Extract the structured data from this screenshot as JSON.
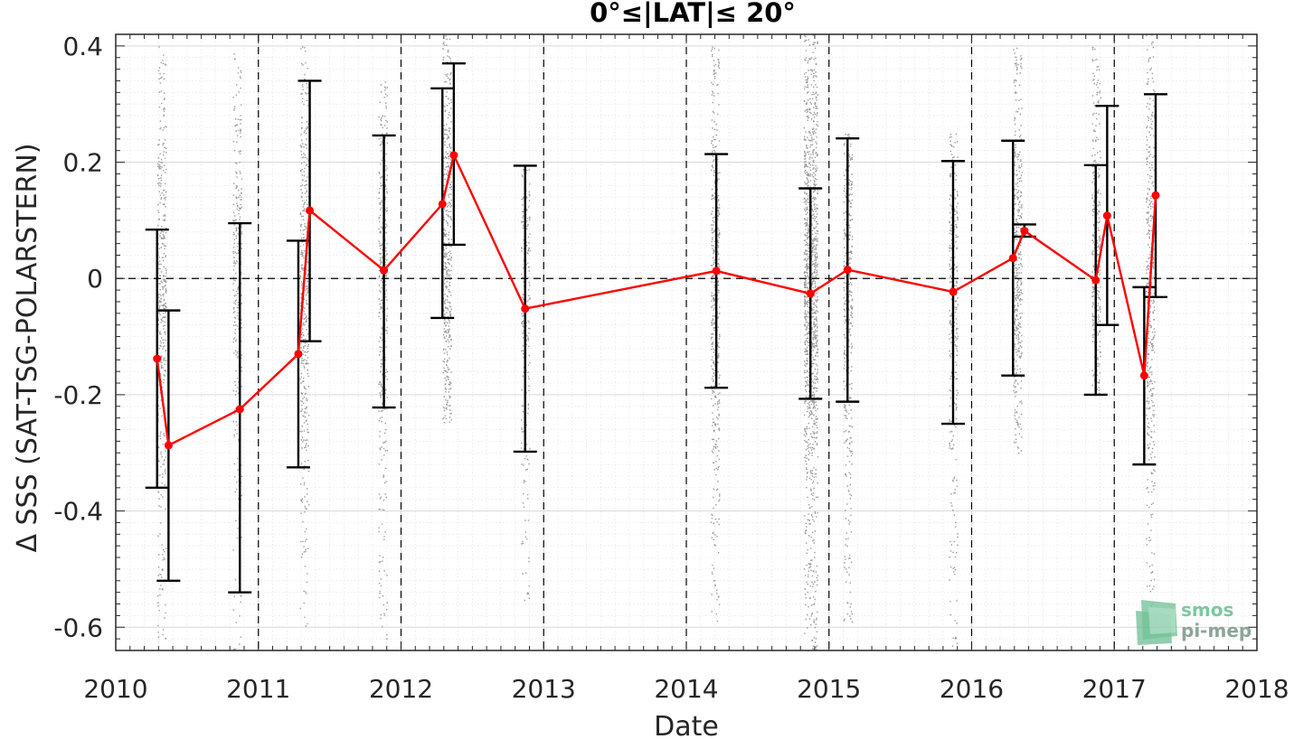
{
  "chart_data": {
    "type": "line",
    "title": "0°≤|LAT|≤ 20°",
    "xlabel": "Date",
    "ylabel": "Δ SSS (SAT-TSG-POLARSTERN)",
    "xlim": [
      2010,
      2018
    ],
    "ylim": [
      -0.64,
      0.42
    ],
    "x_ticks": [
      2010,
      2011,
      2012,
      2013,
      2014,
      2015,
      2016,
      2017,
      2018
    ],
    "x_tick_labels": [
      "2010",
      "2011",
      "2012",
      "2013",
      "2014",
      "2015",
      "2016",
      "2017",
      "2018"
    ],
    "y_ticks": [
      0.4,
      0.2,
      0,
      -0.2,
      -0.4,
      -0.6
    ],
    "y_tick_labels": [
      "0.4",
      "0.2",
      "0",
      "-0.2",
      "-0.4",
      "-0.6"
    ],
    "grid": true,
    "year_boundary_lines": [
      2011,
      2012,
      2013,
      2014,
      2015,
      2016,
      2017
    ],
    "zero_line": 0,
    "series": [
      {
        "type": "line-with-errorbars",
        "color": "#ff0000",
        "x": [
          2010.29,
          2010.37,
          2010.87,
          2011.28,
          2011.36,
          2011.88,
          2012.29,
          2012.37,
          2012.87,
          2014.21,
          2014.87,
          2015.13,
          2015.87,
          2016.29,
          2016.37,
          2016.87,
          2016.95,
          2017.21,
          2017.29
        ],
        "y": [
          -0.138,
          -0.287,
          -0.225,
          -0.13,
          0.117,
          0.014,
          0.128,
          0.212,
          -0.052,
          0.013,
          -0.026,
          0.015,
          -0.023,
          0.035,
          0.082,
          -0.003,
          0.108,
          -0.167,
          0.143
        ],
        "err_low": [
          -0.36,
          -0.52,
          -0.54,
          -0.325,
          -0.108,
          -0.222,
          -0.068,
          0.058,
          -0.298,
          -0.188,
          -0.207,
          -0.212,
          -0.25,
          -0.167,
          0.072,
          -0.2,
          -0.08,
          -0.32,
          -0.032
        ],
        "err_high": [
          0.084,
          -0.055,
          0.095,
          0.065,
          0.34,
          0.246,
          0.327,
          0.37,
          0.194,
          0.214,
          0.155,
          0.241,
          0.202,
          0.237,
          0.093,
          0.195,
          0.297,
          -0.015,
          0.317
        ]
      }
    ],
    "scatter_bands": {
      "color": "#8a8a8a",
      "clusters": [
        {
          "x": 2010.32,
          "y_min": -0.62,
          "y_max": 0.4,
          "density": 1.0
        },
        {
          "x": 2010.85,
          "y_min": -0.64,
          "y_max": 0.4,
          "density": 0.7
        },
        {
          "x": 2011.32,
          "y_min": -0.6,
          "y_max": 0.4,
          "density": 1.0
        },
        {
          "x": 2011.87,
          "y_min": -0.62,
          "y_max": 0.34,
          "density": 0.9
        },
        {
          "x": 2012.32,
          "y_min": -0.25,
          "y_max": 0.42,
          "density": 1.1
        },
        {
          "x": 2012.87,
          "y_min": -0.56,
          "y_max": 0.2,
          "density": 0.6
        },
        {
          "x": 2014.2,
          "y_min": -0.6,
          "y_max": 0.4,
          "density": 1.2
        },
        {
          "x": 2014.87,
          "y_min": -0.64,
          "y_max": 0.42,
          "density": 3.0
        },
        {
          "x": 2015.13,
          "y_min": -0.6,
          "y_max": 0.25,
          "density": 1.0
        },
        {
          "x": 2015.87,
          "y_min": -0.64,
          "y_max": 0.25,
          "density": 0.8
        },
        {
          "x": 2016.32,
          "y_min": -0.3,
          "y_max": 0.4,
          "density": 1.0
        },
        {
          "x": 2016.87,
          "y_min": -0.2,
          "y_max": 0.4,
          "density": 0.9
        },
        {
          "x": 2017.25,
          "y_min": -0.58,
          "y_max": 0.42,
          "density": 1.0
        }
      ]
    }
  },
  "logo": {
    "line1": "smos",
    "line2": "pi-mep"
  }
}
